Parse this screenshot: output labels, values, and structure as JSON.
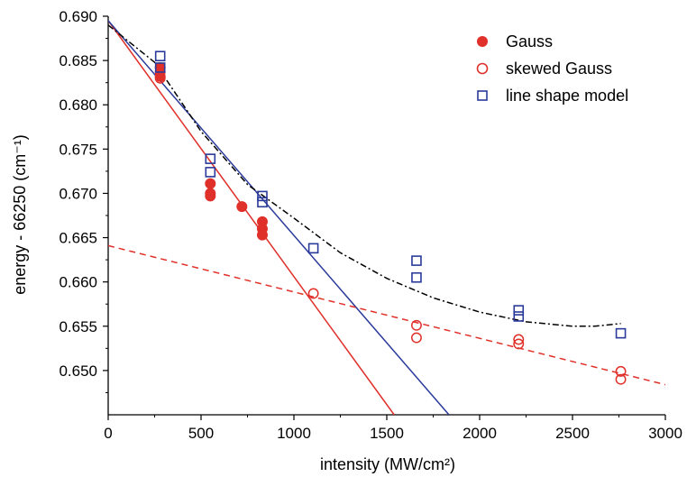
{
  "chart_data": {
    "type": "scatter",
    "xlabel": "intensity (MW/cm²)",
    "ylabel": "energy - 66250 (cm⁻¹)",
    "xlim": [
      0,
      3000
    ],
    "ylim": [
      0.645,
      0.69
    ],
    "x_ticks": [
      0,
      500,
      1000,
      1500,
      2000,
      2500,
      3000
    ],
    "y_ticks": [
      0.65,
      0.655,
      0.66,
      0.665,
      0.67,
      0.675,
      0.68,
      0.685,
      0.69
    ],
    "y_tick_labels": [
      "0.650",
      "0.655",
      "0.660",
      "0.665",
      "0.670",
      "0.675",
      "0.680",
      "0.685",
      "0.690"
    ],
    "grid": false,
    "legend_position": "top-right",
    "colors": {
      "gauss": "#e0302a",
      "skewed": "#e0302a",
      "lineshape": "#2a3a9a",
      "fit_black": "#000000"
    },
    "series": [
      {
        "name": "Gauss",
        "marker": "filled-circle",
        "color": "#e0302a",
        "points": [
          [
            280,
            0.6842
          ],
          [
            280,
            0.6837
          ],
          [
            280,
            0.6832
          ],
          [
            550,
            0.6711
          ],
          [
            550,
            0.67
          ],
          [
            550,
            0.6697
          ],
          [
            720,
            0.6685
          ],
          [
            830,
            0.6668
          ],
          [
            830,
            0.666
          ],
          [
            830,
            0.6653
          ]
        ]
      },
      {
        "name": "skewed Gauss",
        "marker": "open-circle",
        "color": "#e0302a",
        "points": [
          [
            280,
            0.683
          ],
          [
            1105,
            0.6587
          ],
          [
            1660,
            0.6551
          ],
          [
            1660,
            0.6537
          ],
          [
            2210,
            0.6535
          ],
          [
            2210,
            0.653
          ],
          [
            2760,
            0.6499
          ],
          [
            2760,
            0.649
          ]
        ]
      },
      {
        "name": "line shape model",
        "marker": "open-square",
        "color": "#2a3a9a",
        "points": [
          [
            280,
            0.6855
          ],
          [
            280,
            0.6842
          ],
          [
            550,
            0.6739
          ],
          [
            550,
            0.6724
          ],
          [
            830,
            0.6697
          ],
          [
            830,
            0.669
          ],
          [
            1105,
            0.6638
          ],
          [
            1660,
            0.6624
          ],
          [
            1660,
            0.6605
          ],
          [
            2210,
            0.6568
          ],
          [
            2210,
            0.6561
          ],
          [
            2760,
            0.6542
          ]
        ]
      }
    ],
    "fit_lines": [
      {
        "style": "solid",
        "color": "#e0302a",
        "points": [
          [
            0,
            0.6895
          ],
          [
            1540,
            0.645
          ]
        ]
      },
      {
        "style": "solid",
        "color": "#2a3a9a",
        "points": [
          [
            0,
            0.6895
          ],
          [
            1835,
            0.645
          ]
        ]
      },
      {
        "style": "dashed",
        "color": "#e0302a",
        "points": [
          [
            0,
            0.6641
          ],
          [
            3000,
            0.6484
          ]
        ]
      },
      {
        "style": "dash-dot",
        "color": "#000000",
        "points": [
          [
            0,
            0.689
          ],
          [
            250,
            0.6848
          ],
          [
            500,
            0.677
          ],
          [
            750,
            0.671
          ],
          [
            1000,
            0.6672
          ],
          [
            1250,
            0.6633
          ],
          [
            1500,
            0.6604
          ],
          [
            1750,
            0.6582
          ],
          [
            2000,
            0.6566
          ],
          [
            2250,
            0.6555
          ],
          [
            2500,
            0.655
          ],
          [
            2620,
            0.655
          ],
          [
            2760,
            0.6553
          ]
        ]
      }
    ]
  }
}
